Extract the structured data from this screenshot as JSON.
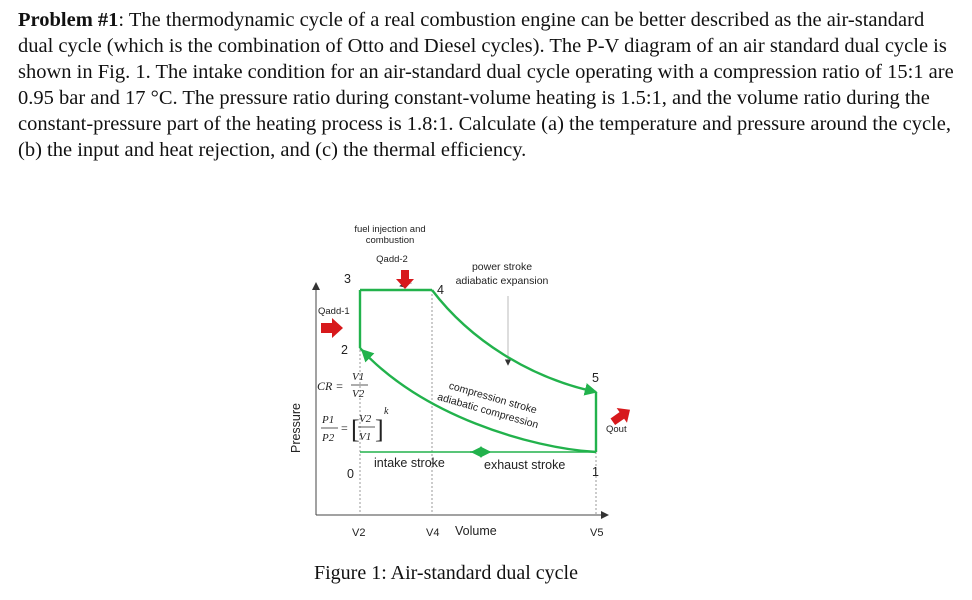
{
  "problem": {
    "heading": "Problem #1",
    "text": ": The thermodynamic cycle of a real combustion engine can be better described as the air-standard dual cycle (which is the combination of Otto and Diesel cycles).  The P-V diagram of an air standard dual cycle is shown in Fig. 1. The intake condition for an air-standard dual cycle operating with a compression ratio of 15:1 are 0.95 bar and 17 °C. The pressure ratio during constant-volume heating is 1.5:1, and the volume ratio during the constant-pressure part of the heating process is 1.8:1. Calculate (a) the temperature and pressure around the cycle, (b) the input and heat rejection, and (c) the thermal efficiency."
  },
  "diagram": {
    "y_axis_label": "Pressure",
    "x_axis_label": "Volume",
    "fuel_label_line1": "fuel injection and",
    "fuel_label_line2": "combustion",
    "qadd2": "Qadd-2",
    "qadd1": "Qadd-1",
    "qout": "Qout",
    "power_line1": "power stroke",
    "power_line2": "adiabatic expansion",
    "comp_line1": "compression stroke",
    "comp_line2": "adiabatic compression",
    "intake": "intake stroke",
    "exhaust": "exhaust stroke",
    "points": {
      "p0": "0",
      "p1": "1",
      "p2": "2",
      "p3": "3",
      "p4": "4",
      "p5": "5"
    },
    "ticks": {
      "v2": "V2",
      "v4": "V4",
      "v5": "V5"
    },
    "cr_lhs": "CR =",
    "cr_num": "V1",
    "cr_den": "V2",
    "p_num": "P1",
    "p_den": "P2",
    "v_num": "V2",
    "v_den": "V1",
    "exponent": "k",
    "colors": {
      "cycle": "#22b24c",
      "arrow_red": "#d7191c"
    }
  },
  "caption": "Figure 1: Air-standard dual cycle"
}
